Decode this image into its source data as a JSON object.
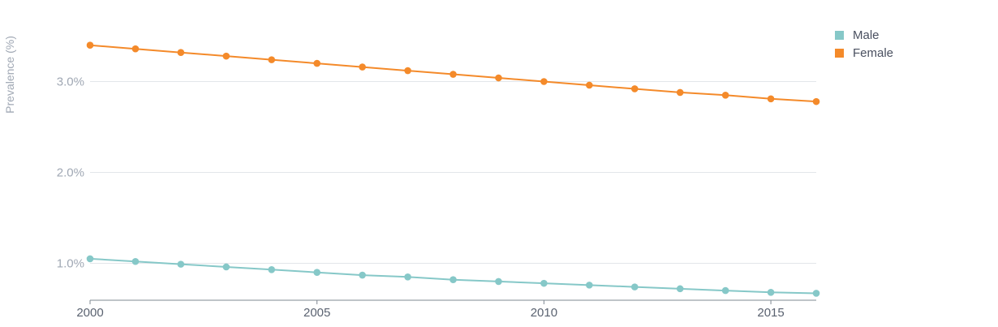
{
  "chart_data": {
    "type": "line",
    "title": "",
    "xlabel": "",
    "ylabel": "Prevalence (%)",
    "x": [
      2000,
      2001,
      2002,
      2003,
      2004,
      2005,
      2006,
      2007,
      2008,
      2009,
      2010,
      2011,
      2012,
      2013,
      2014,
      2015,
      2016
    ],
    "xlim": [
      2000,
      2016
    ],
    "ylim": [
      0.6,
      3.5
    ],
    "x_ticks": [
      {
        "value": 2000,
        "label": "2000"
      },
      {
        "value": 2005,
        "label": "2005"
      },
      {
        "value": 2010,
        "label": "2010"
      },
      {
        "value": 2015,
        "label": "2015"
      }
    ],
    "y_ticks": [
      {
        "value": 1.0,
        "label": "1.0%"
      },
      {
        "value": 2.0,
        "label": "2.0%"
      },
      {
        "value": 3.0,
        "label": "3.0%"
      }
    ],
    "grid": "horizontal",
    "legend_position": "top-right",
    "series": [
      {
        "name": "Male",
        "color": "#86c8c8",
        "values": [
          1.05,
          1.02,
          0.99,
          0.96,
          0.93,
          0.9,
          0.87,
          0.85,
          0.82,
          0.8,
          0.78,
          0.76,
          0.74,
          0.72,
          0.7,
          0.68,
          0.67
        ]
      },
      {
        "name": "Female",
        "color": "#f48a2a",
        "values": [
          3.4,
          3.36,
          3.32,
          3.28,
          3.24,
          3.2,
          3.16,
          3.12,
          3.08,
          3.04,
          3.0,
          2.96,
          2.92,
          2.88,
          2.85,
          2.81,
          2.78
        ]
      }
    ]
  }
}
